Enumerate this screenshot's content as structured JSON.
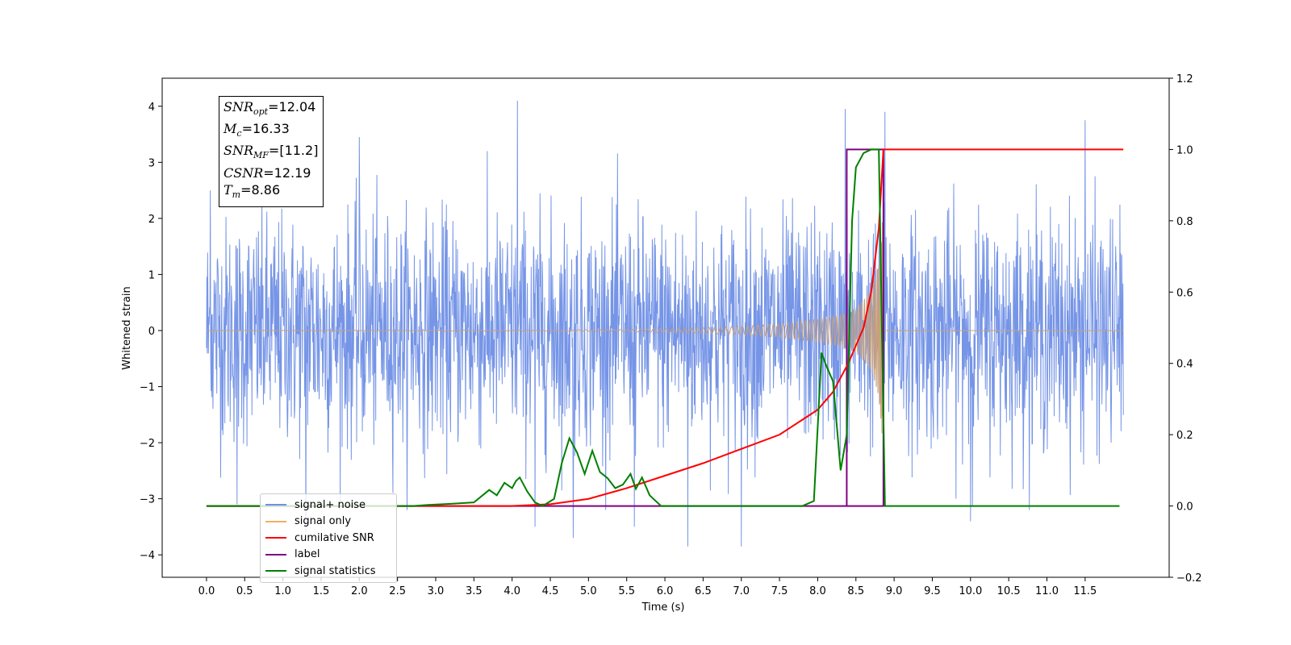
{
  "colors": {
    "signal_noise": "#6f8fe6",
    "signal_only": "#f0b060",
    "signal_only_fill": "#c8a07a",
    "cumulative_snr": "#ff0000",
    "label": "#800080",
    "signal_statistics": "#008000"
  },
  "annotation": {
    "snr_opt": {
      "base": "SNR",
      "sub": "opt",
      "value": "=12.04"
    },
    "mc": {
      "base": "M",
      "sub": "c",
      "value": "=16.33"
    },
    "snr_mf": {
      "base": "SNR",
      "sub": "MF",
      "value": "=[11.2]"
    },
    "csnr": {
      "base": "CSNR",
      "sub": "",
      "value": "=12.19"
    },
    "tm": {
      "base": "T",
      "sub": "m",
      "value": "=8.86"
    }
  },
  "legend": {
    "items": [
      {
        "label": "signal+ noise",
        "color": "#6f8fe6"
      },
      {
        "label": "signal only",
        "color": "#f0b060"
      },
      {
        "label": "cumilative SNR",
        "color": "#ff0000"
      },
      {
        "label": "label",
        "color": "#800080"
      },
      {
        "label": "signal statistics",
        "color": "#008000"
      }
    ]
  },
  "chart_data": {
    "type": "line",
    "xlabel": "Time (s)",
    "ylabel": "Whitened strain",
    "xlim": [
      -0.58,
      12.6
    ],
    "ylim": [
      -4.4,
      4.5
    ],
    "y2lim": [
      -0.2,
      1.2
    ],
    "x_ticks": [
      "0.0",
      "0.5",
      "1.0",
      "1.5",
      "2.0",
      "2.5",
      "3.0",
      "3.5",
      "4.0",
      "4.5",
      "5.0",
      "5.5",
      "6.0",
      "6.5",
      "7.0",
      "7.5",
      "8.0",
      "8.5",
      "9.0",
      "9.5",
      "10.0",
      "10.5",
      "11.0",
      "11.5"
    ],
    "y_ticks": [
      "−4",
      "−3",
      "−2",
      "−1",
      "0",
      "1",
      "2",
      "3",
      "4"
    ],
    "y2_ticks": [
      "−0.2",
      "0.0",
      "0.2",
      "0.4",
      "0.6",
      "0.8",
      "1.0",
      "1.2"
    ],
    "grid": false,
    "legend_position": "lower-left",
    "series": [
      {
        "name": "signal+ noise",
        "axis": "left",
        "noise_sd": 1.0,
        "x_range": [
          0.0,
          12.0
        ],
        "peaks": [
          [
            0.05,
            2.5
          ],
          [
            0.4,
            -3.1
          ],
          [
            1.3,
            -3.6
          ],
          [
            2.0,
            3.45
          ],
          [
            4.07,
            4.1
          ],
          [
            4.3,
            -3.5
          ],
          [
            4.8,
            -3.7
          ],
          [
            5.6,
            -3.5
          ],
          [
            6.3,
            -3.85
          ],
          [
            7.0,
            -3.85
          ],
          [
            8.36,
            3.95
          ],
          [
            8.88,
            3.9
          ],
          [
            10.0,
            -3.4
          ],
          [
            11.5,
            3.75
          ]
        ]
      },
      {
        "name": "signal only",
        "axis": "left",
        "x": [
          0.0,
          4.5,
          5.5,
          6.5,
          7.0,
          7.5,
          8.0,
          8.3,
          8.5,
          8.7,
          8.8,
          8.85,
          8.86,
          9.0,
          12.0
        ],
        "envelope": [
          0.0,
          0.01,
          0.02,
          0.05,
          0.08,
          0.12,
          0.2,
          0.28,
          0.4,
          0.7,
          1.2,
          2.0,
          0.0,
          0.0,
          0.0
        ]
      },
      {
        "name": "cumilative SNR",
        "axis": "right",
        "x": [
          0.0,
          4.0,
          4.5,
          5.0,
          5.5,
          6.0,
          6.5,
          7.0,
          7.5,
          8.0,
          8.2,
          8.4,
          8.6,
          8.7,
          8.8,
          8.86,
          12.0
        ],
        "y": [
          0.0,
          0.0,
          0.005,
          0.02,
          0.05,
          0.085,
          0.12,
          0.16,
          0.2,
          0.27,
          0.32,
          0.4,
          0.5,
          0.6,
          0.78,
          1.0,
          1.0
        ]
      },
      {
        "name": "label",
        "axis": "right",
        "x": [
          0.0,
          8.38,
          8.38,
          8.86,
          8.86,
          6.1
        ],
        "y": [
          0.0,
          0.0,
          1.0,
          1.0,
          0.0,
          0.0
        ]
      },
      {
        "name": "signal statistics",
        "axis": "right",
        "x": [
          0.0,
          2.7,
          2.9,
          3.2,
          3.5,
          3.7,
          3.8,
          3.9,
          4.0,
          4.05,
          4.1,
          4.2,
          4.3,
          4.4,
          4.55,
          4.65,
          4.75,
          4.85,
          4.95,
          5.05,
          5.15,
          5.25,
          5.35,
          5.45,
          5.55,
          5.62,
          5.7,
          5.8,
          5.95,
          6.05,
          6.2,
          7.8,
          7.95,
          8.05,
          8.1,
          8.2,
          8.3,
          8.38,
          8.45,
          8.5,
          8.6,
          8.7,
          8.8,
          8.88,
          8.95,
          11.95
        ],
        "y": [
          0.0,
          0.0,
          0.003,
          0.006,
          0.01,
          0.045,
          0.03,
          0.065,
          0.05,
          0.07,
          0.08,
          0.04,
          0.01,
          0.0,
          0.02,
          0.12,
          0.19,
          0.15,
          0.09,
          0.155,
          0.095,
          0.078,
          0.05,
          0.06,
          0.09,
          0.048,
          0.08,
          0.03,
          0.0,
          0.0,
          0.0,
          0.0,
          0.014,
          0.43,
          0.4,
          0.35,
          0.1,
          0.2,
          0.8,
          0.95,
          0.99,
          1.0,
          1.0,
          0.0,
          0.0,
          0.0
        ]
      }
    ]
  }
}
